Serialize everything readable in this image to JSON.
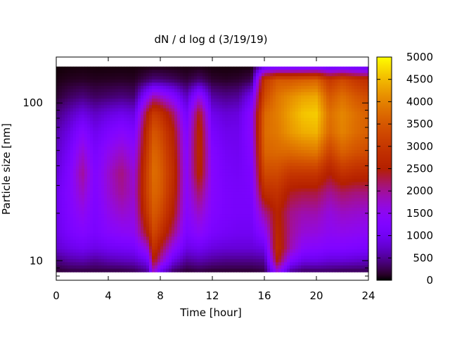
{
  "chart_data": {
    "type": "heatmap",
    "title": "dN / d log d (3/19/19)",
    "xlabel": "Time [hour]",
    "ylabel": "Particle size [nm]",
    "xlim": [
      0,
      24
    ],
    "ylim": [
      8,
      180
    ],
    "y_scale": "log",
    "x_ticks": [
      0,
      4,
      8,
      12,
      16,
      20,
      24
    ],
    "y_ticks": [
      10,
      100
    ],
    "colorbar": {
      "range": [
        0,
        5000
      ],
      "ticks": [
        0,
        500,
        1000,
        1500,
        2000,
        2500,
        3000,
        3500,
        4000,
        4500,
        5000
      ],
      "colormap": "gnuplot"
    },
    "size_bins_nm": [
      8.5,
      10,
      12,
      15,
      20,
      27,
      36,
      48,
      65,
      85,
      110,
      140,
      170
    ],
    "time_bins_hour": [
      0,
      1,
      2,
      3,
      4,
      5,
      6,
      7,
      7.5,
      8,
      9,
      10,
      11,
      12,
      13,
      14,
      15,
      16,
      17,
      18,
      19,
      20,
      21,
      22,
      23,
      24
    ],
    "values": [
      [
        150,
        400,
        750,
        900,
        950,
        950,
        800,
        700,
        600,
        400,
        150,
        60,
        20
      ],
      [
        200,
        550,
        900,
        1150,
        1250,
        1300,
        1250,
        1100,
        900,
        650,
        300,
        100,
        30
      ],
      [
        200,
        600,
        1000,
        1300,
        1550,
        1800,
        2000,
        1750,
        1350,
        900,
        400,
        120,
        40
      ],
      [
        200,
        500,
        900,
        1150,
        1200,
        1250,
        1250,
        1150,
        950,
        700,
        300,
        100,
        30
      ],
      [
        200,
        600,
        1000,
        1350,
        1550,
        1700,
        1750,
        1550,
        1200,
        850,
        350,
        110,
        30
      ],
      [
        200,
        650,
        1050,
        1450,
        1750,
        2000,
        2100,
        1800,
        1400,
        950,
        400,
        120,
        30
      ],
      [
        250,
        700,
        1100,
        1500,
        1650,
        1750,
        1700,
        1500,
        1200,
        850,
        350,
        110,
        30
      ],
      [
        450,
        1000,
        1700,
        2500,
        3000,
        3200,
        3200,
        3050,
        2850,
        2500,
        1400,
        300,
        50
      ],
      [
        1800,
        2500,
        2950,
        3300,
        3550,
        3700,
        3800,
        3700,
        3500,
        3100,
        1900,
        400,
        60
      ],
      [
        900,
        1900,
        2400,
        2900,
        3300,
        3550,
        3600,
        3500,
        3300,
        2900,
        1750,
        380,
        60
      ],
      [
        300,
        900,
        1500,
        2100,
        2500,
        2700,
        2800,
        2700,
        2550,
        2200,
        1300,
        300,
        50
      ],
      [
        150,
        500,
        900,
        1200,
        1350,
        1400,
        1400,
        1350,
        1250,
        1050,
        650,
        180,
        40
      ],
      [
        200,
        600,
        1000,
        1450,
        1800,
        2200,
        2650,
        2750,
        2700,
        2500,
        1600,
        350,
        50
      ],
      [
        150,
        500,
        850,
        1150,
        1300,
        1350,
        1350,
        1300,
        1150,
        950,
        550,
        150,
        30
      ],
      [
        150,
        450,
        800,
        1050,
        1150,
        1150,
        1100,
        1050,
        950,
        800,
        450,
        120,
        30
      ],
      [
        150,
        450,
        800,
        1000,
        1100,
        1100,
        1050,
        1000,
        950,
        850,
        500,
        150,
        30
      ],
      [
        150,
        450,
        800,
        1000,
        1100,
        1150,
        1200,
        1300,
        1400,
        1400,
        1000,
        250,
        40
      ],
      [
        200,
        500,
        900,
        1400,
        2000,
        2800,
        3300,
        3650,
        3750,
        3700,
        3300,
        3000,
        900
      ],
      [
        1600,
        2500,
        2800,
        2700,
        2600,
        2900,
        3300,
        3700,
        3900,
        3950,
        3850,
        3500,
        1000
      ],
      [
        500,
        1300,
        1900,
        2000,
        2050,
        2400,
        3000,
        3700,
        4200,
        4300,
        4100,
        3500,
        1000
      ],
      [
        300,
        900,
        1400,
        1700,
        1900,
        2300,
        3000,
        3800,
        4400,
        4600,
        4300,
        3600,
        1000
      ],
      [
        300,
        900,
        1350,
        1650,
        1900,
        2300,
        3000,
        3850,
        4450,
        4650,
        4350,
        3650,
        1050
      ],
      [
        300,
        800,
        1250,
        1500,
        1650,
        2000,
        2500,
        3150,
        3700,
        3800,
        3500,
        3000,
        900
      ],
      [
        250,
        800,
        1250,
        1550,
        1800,
        2200,
        2900,
        3600,
        4000,
        4050,
        3800,
        3300,
        950
      ],
      [
        250,
        750,
        1200,
        1500,
        1750,
        2100,
        2750,
        3400,
        3750,
        3800,
        3500,
        3000,
        900
      ],
      [
        250,
        700,
        1150,
        1450,
        1700,
        2100,
        2700,
        3300,
        3600,
        3600,
        3300,
        2800,
        850
      ]
    ]
  }
}
